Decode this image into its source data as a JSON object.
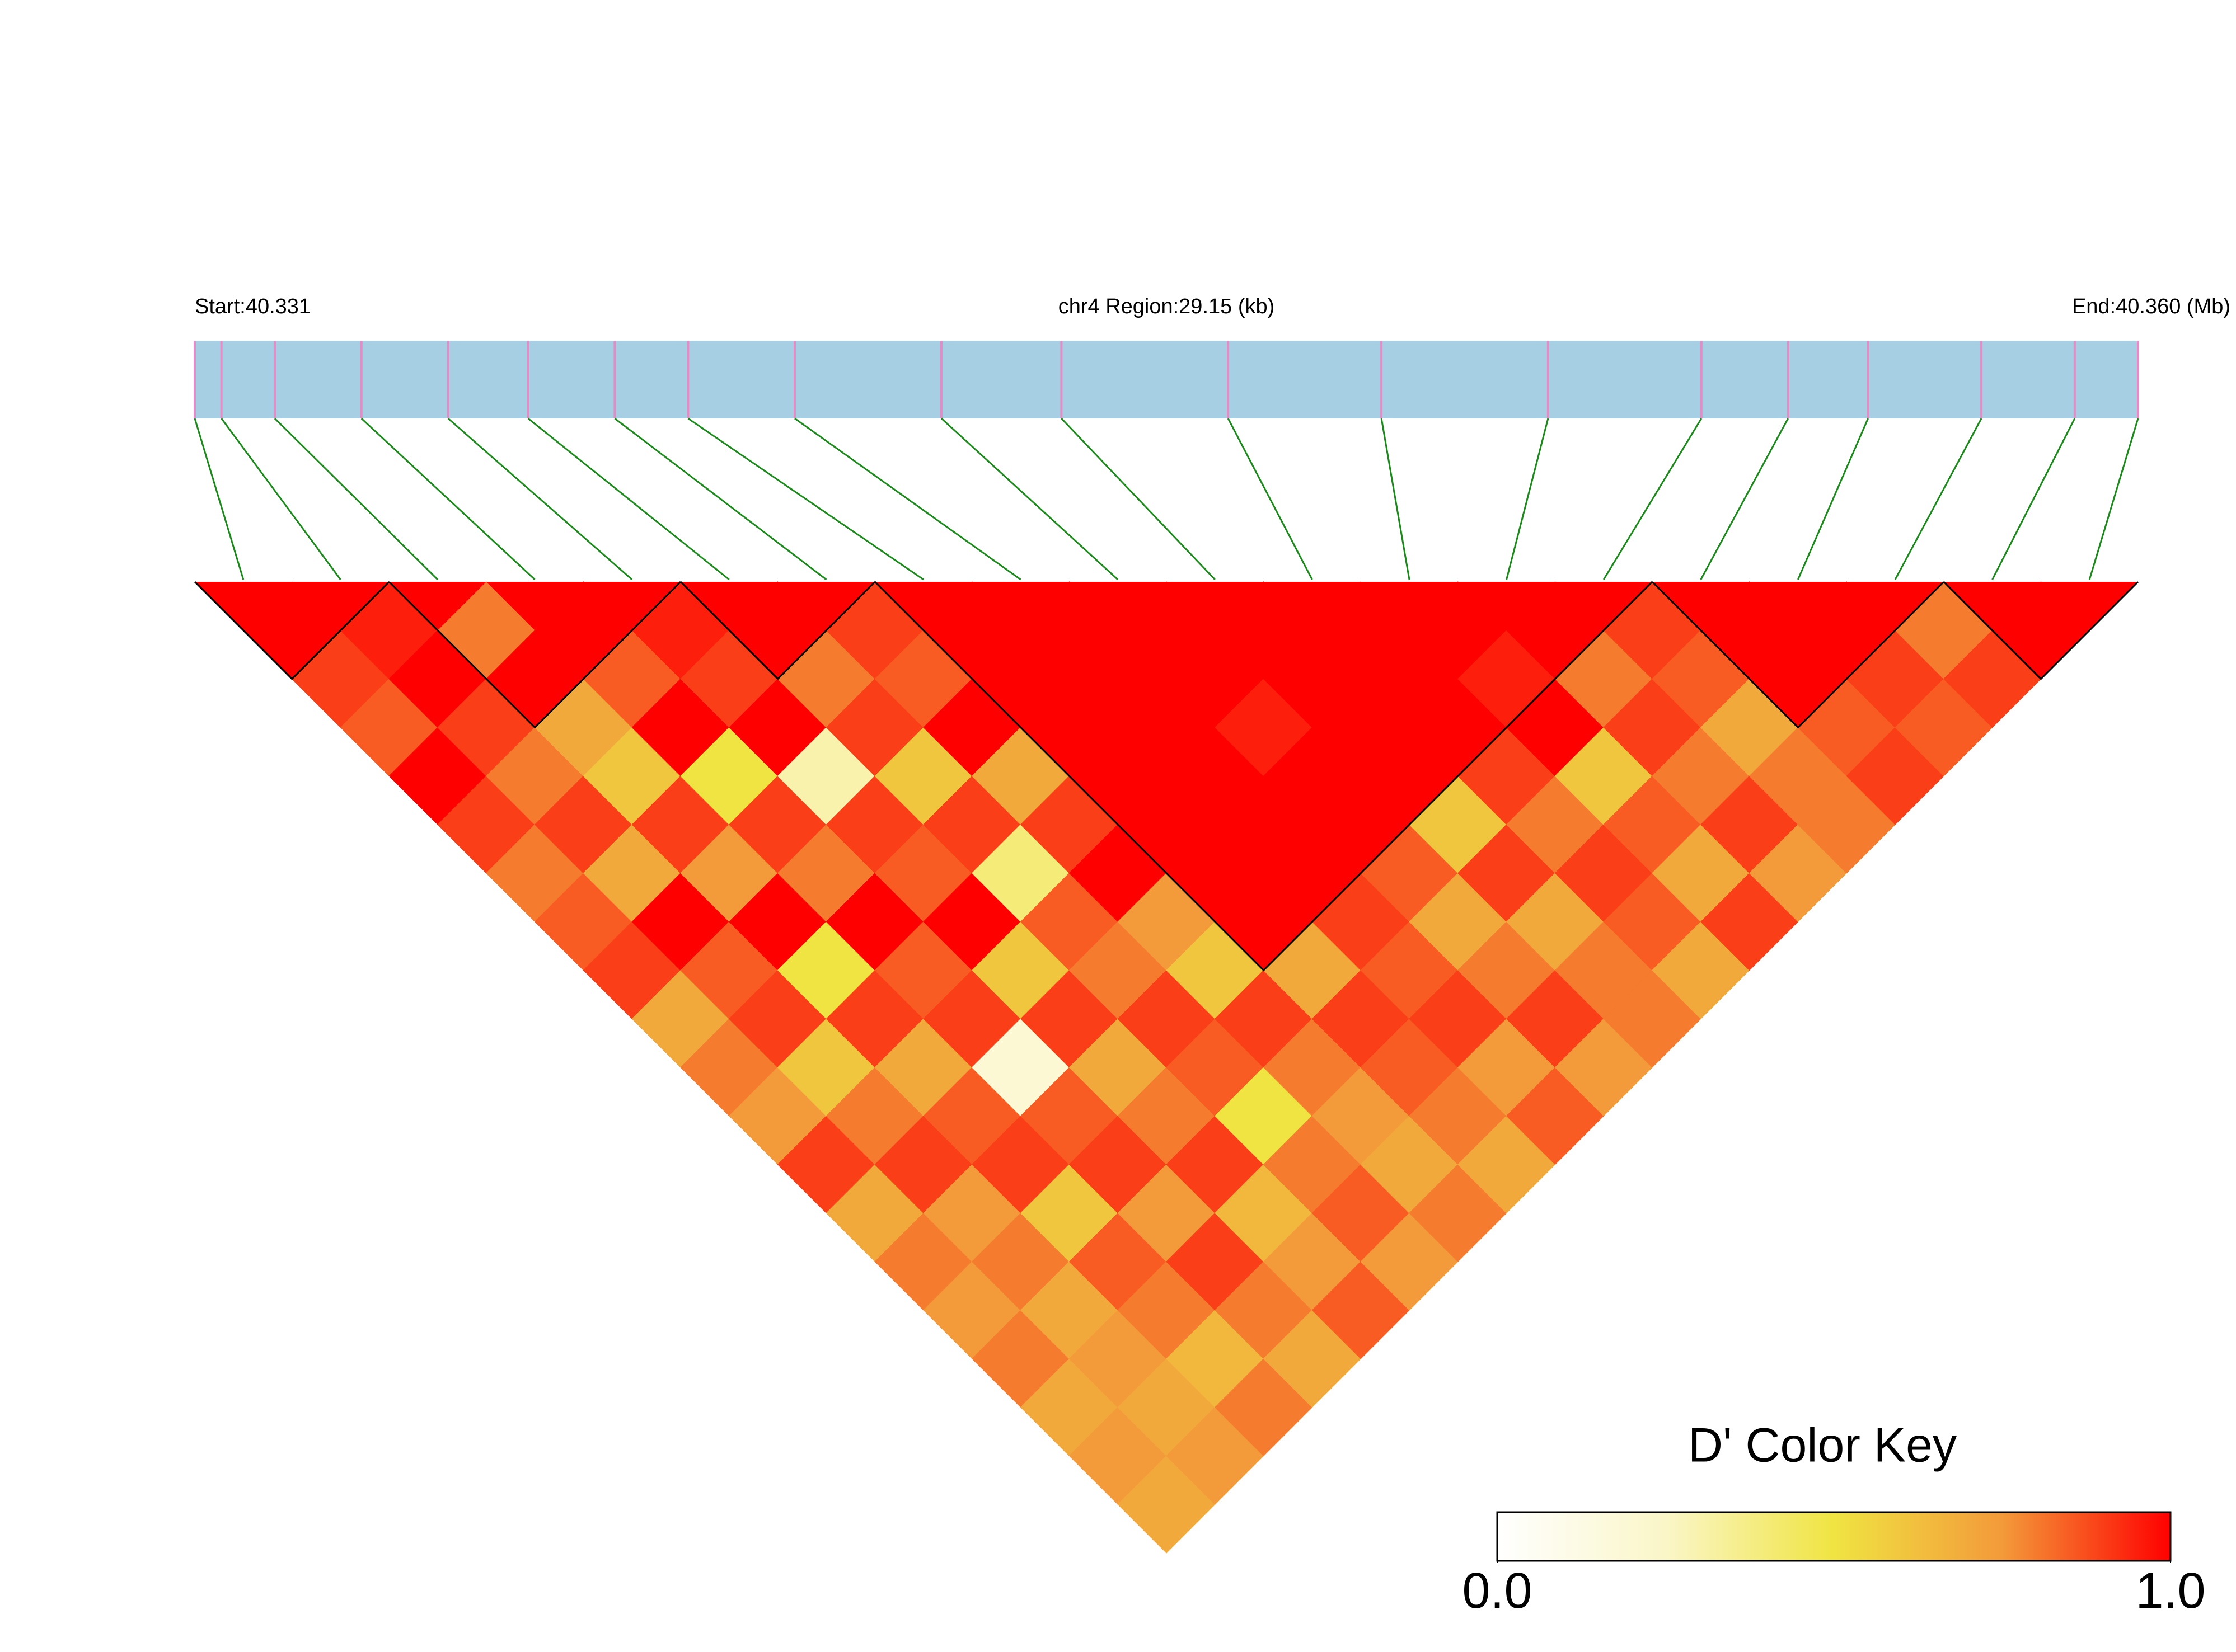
{
  "chart_data": {
    "type": "ld_heatmap",
    "start_label": "Start:40.331",
    "region_label": "chr4 Region:29.15 (kb)",
    "end_label": "End:40.360 (Mb)",
    "region_kb": 29.15,
    "snp_positions_kb": [
      0,
      0.4,
      1.2,
      2.5,
      3.8,
      5.0,
      6.3,
      7.4,
      9.0,
      11.2,
      13.0,
      15.5,
      17.8,
      20.3,
      22.6,
      23.9,
      25.1,
      26.8,
      28.2,
      29.15
    ],
    "bar_color": "#a6cfe3",
    "snp_color": "#e58cc6",
    "link_color": "#1a8a1a",
    "dprime": [
      [
        1
      ],
      [
        0.9,
        0.95
      ],
      [
        0.85,
        1,
        0.8
      ],
      [
        1,
        0.9,
        1,
        1
      ],
      [
        0.9,
        0.8,
        0.7,
        0.85,
        0.95
      ],
      [
        0.8,
        0.9,
        0.6,
        1,
        0.9,
        1
      ],
      [
        0.85,
        0.7,
        0.9,
        0.5,
        1,
        0.8,
        0.9
      ],
      [
        0.9,
        1,
        0.75,
        0.9,
        0.3,
        0.9,
        0.85,
        1
      ],
      [
        0.7,
        0.85,
        1,
        0.8,
        0.9,
        0.6,
        1,
        1,
        1
      ],
      [
        0.8,
        0.9,
        0.5,
        1,
        0.85,
        0.9,
        0.7,
        1,
        1,
        1
      ],
      [
        0.75,
        0.6,
        0.9,
        0.85,
        1,
        0.4,
        0.9,
        1,
        1,
        1,
        1
      ],
      [
        0.9,
        0.8,
        0.7,
        0.9,
        0.6,
        0.85,
        1,
        1,
        1,
        0.95,
        1,
        1
      ],
      [
        0.7,
        0.9,
        0.85,
        0.2,
        0.9,
        0.8,
        0.75,
        1,
        1,
        1,
        1,
        1,
        1
      ],
      [
        0.8,
        0.75,
        0.9,
        0.85,
        0.7,
        0.9,
        0.6,
        1,
        1,
        1,
        1,
        1,
        0.95,
        1
      ],
      [
        0.75,
        0.8,
        0.6,
        0.9,
        0.8,
        0.85,
        0.9,
        0.7,
        0.9,
        0.85,
        0.6,
        0.9,
        1,
        0.8,
        0.9
      ],
      [
        0.8,
        0.7,
        0.85,
        0.75,
        0.9,
        0.5,
        0.8,
        0.9,
        0.85,
        0.7,
        0.9,
        0.8,
        0.6,
        0.9,
        0.85,
        1
      ],
      [
        0.7,
        0.75,
        0.8,
        0.9,
        0.65,
        0.8,
        0.75,
        0.85,
        0.9,
        0.8,
        0.7,
        0.9,
        0.85,
        0.8,
        0.7,
        1,
        1
      ],
      [
        0.75,
        0.7,
        0.65,
        0.8,
        0.75,
        0.85,
        0.7,
        0.8,
        0.75,
        0.9,
        0.8,
        0.85,
        0.7,
        0.9,
        0.8,
        0.85,
        0.9,
        0.8
      ],
      [
        0.7,
        0.75,
        0.8,
        0.7,
        0.85,
        0.75,
        0.8,
        0.7,
        0.85,
        0.75,
        0.8,
        0.7,
        0.9,
        0.75,
        0.8,
        0.9,
        0.85,
        0.9,
        1
      ]
    ],
    "blocks": [
      [
        0,
        1
      ],
      [
        2,
        4
      ],
      [
        5,
        6
      ],
      [
        7,
        14
      ],
      [
        15,
        17
      ],
      [
        18,
        19
      ]
    ],
    "key_title": "D' Color Key",
    "colormap": [
      "#ffffff",
      "#faf6c8",
      "#f0e442",
      "#f39a3a",
      "#ff0000"
    ],
    "clim": [
      0,
      1
    ],
    "key_ticks": [
      {
        "value": 0,
        "label": "0.0"
      },
      {
        "value": 1,
        "label": "1.0"
      }
    ]
  }
}
